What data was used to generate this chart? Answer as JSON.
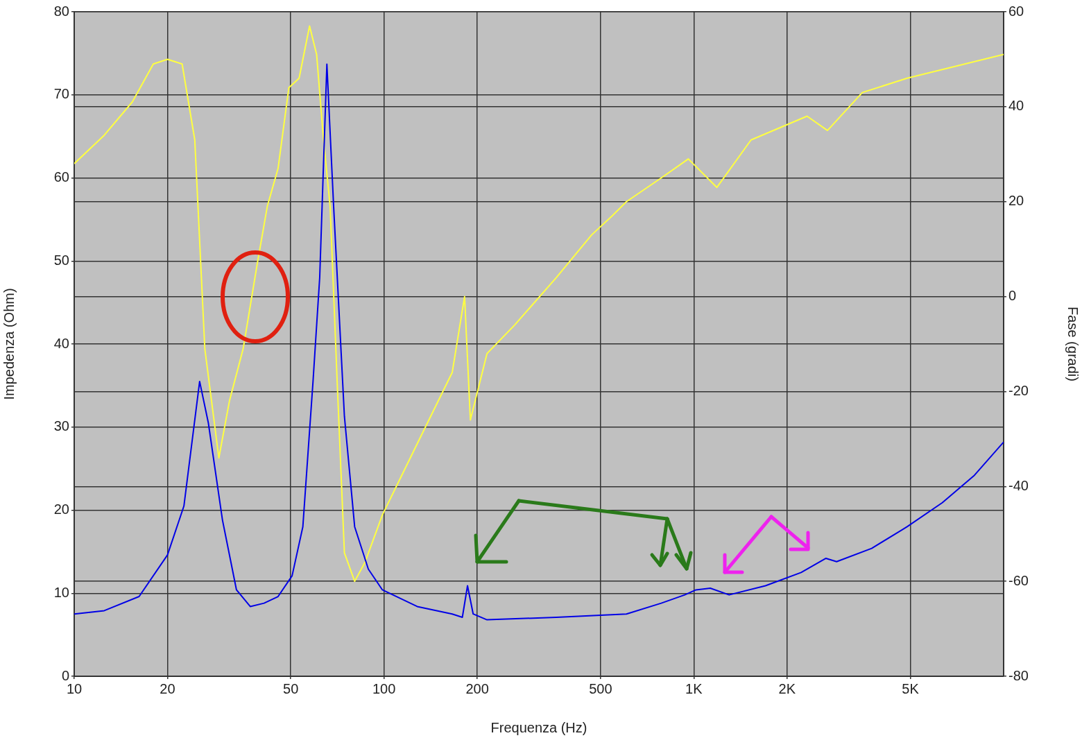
{
  "chart_data": {
    "type": "line",
    "xlabel": "Frequenza (Hz)",
    "ylabel": "Impedenza (Ohm)",
    "y2label": "Fase (gradi)",
    "log": "x",
    "grid": true,
    "xlim": [
      10,
      10000
    ],
    "xticks": [
      10,
      20,
      50,
      100,
      200,
      500,
      {
        "value": 1000,
        "label": "1K"
      },
      {
        "value": 2000,
        "label": "2K"
      },
      {
        "value": 5000,
        "label": "5K"
      }
    ],
    "ylim": [
      0,
      80
    ],
    "yticks": [
      0,
      10,
      20,
      30,
      40,
      50,
      60,
      70,
      80
    ],
    "y2lim": [
      -80,
      60
    ],
    "y2ticks": [
      -80,
      -60,
      -40,
      -20,
      0,
      20,
      40,
      60
    ],
    "series": [
      {
        "color": "#0000e6",
        "x": [
          10,
          12.5,
          16.2,
          20,
          22.6,
          25.4,
          27.1,
          30.1,
          33.4,
          37,
          41,
          45.5,
          50.5,
          54.7,
          59,
          62,
          65.4,
          68.8,
          74.5,
          80.4,
          89,
          98.8,
          128,
          166,
          179,
          186,
          194,
          215,
          360,
          606,
          785,
          935,
          1016,
          1130,
          1300,
          1703,
          2220,
          2670,
          2890,
          3750,
          4880,
          6340,
          8050,
          10000
        ],
        "values": [
          7.5,
          7.9,
          9.6,
          14.6,
          20.5,
          35.5,
          30.5,
          18.8,
          10.4,
          8.4,
          8.8,
          9.6,
          12.1,
          18,
          35.5,
          48,
          73.7,
          56.4,
          31.3,
          18,
          12.9,
          10.4,
          8.4,
          7.5,
          7.1,
          10.9,
          7.5,
          6.8,
          7.1,
          7.5,
          8.8,
          9.8,
          10.4,
          10.6,
          9.8,
          10.9,
          12.5,
          14.2,
          13.8,
          15.4,
          18,
          20.9,
          24.2,
          28.2
        ]
      },
      {
        "color": "#ffff40",
        "axis": "y2",
        "x": [
          10,
          12.5,
          15.4,
          18,
          20,
          22.3,
          24.5,
          26.4,
          29.3,
          31.7,
          35.1,
          39,
          42,
          45.5,
          49.3,
          53.2,
          57.5,
          60.6,
          63.8,
          67,
          70.6,
          74.5,
          80.4,
          86.8,
          98.8,
          128,
          166,
          182,
          190,
          215,
          264,
          360,
          468,
          545,
          606,
          785,
          960,
          1187,
          1530,
          2320,
          2700,
          3500,
          4880,
          10000
        ],
        "values": [
          28,
          34,
          41,
          49,
          50,
          49,
          33,
          -11,
          -34,
          -22,
          -11,
          7,
          19,
          27,
          44,
          46,
          57,
          51,
          33,
          19,
          -18,
          -54,
          -60,
          -56,
          -46,
          -31,
          -16,
          0,
          -26,
          -12,
          -6,
          4,
          13,
          17,
          20,
          25,
          29,
          23,
          33,
          38,
          35,
          43,
          46,
          51
        ]
      }
    ]
  }
}
